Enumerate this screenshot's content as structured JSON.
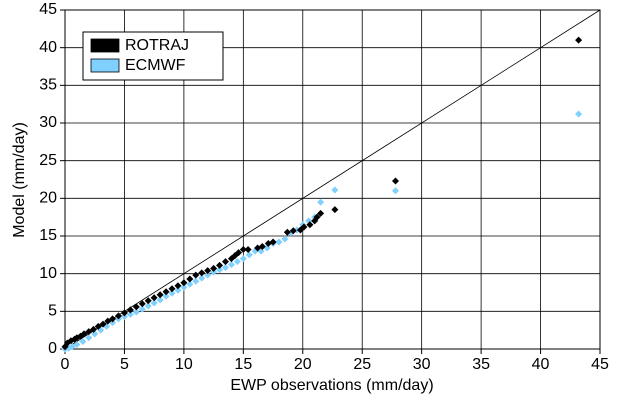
{
  "chart_data": {
    "type": "scatter",
    "xlabel": "EWP observations (mm/day)",
    "ylabel": "Model (mm/day)",
    "xlim": [
      0,
      45
    ],
    "ylim": [
      0,
      45
    ],
    "xticks": [
      0,
      5,
      10,
      15,
      20,
      25,
      30,
      35,
      40,
      45
    ],
    "yticks": [
      0,
      5,
      10,
      15,
      20,
      25,
      30,
      35,
      40,
      45
    ],
    "grid": true,
    "legend": "upper left",
    "series": [
      {
        "name": "ROTRAJ",
        "color": "#000000",
        "x": [
          0,
          0.2,
          0.5,
          0.8,
          1,
          1.3,
          1.6,
          2,
          2.4,
          2.8,
          3.2,
          3.6,
          4,
          4.5,
          5,
          5.5,
          6,
          6.5,
          7,
          7.5,
          8,
          8.5,
          9,
          9.5,
          10,
          10.5,
          11,
          11.5,
          12,
          12.5,
          13,
          13.5,
          14,
          14.3,
          14.6,
          15,
          15.4,
          16.2,
          16.6,
          17.1,
          17.5,
          18.7,
          19.2,
          19.8,
          20.1,
          20.6,
          21,
          21.2,
          21.5,
          22.7,
          27.8,
          43.2
        ],
        "values": [
          0.3,
          0.8,
          1.1,
          1.3,
          1.5,
          1.7,
          2.0,
          2.3,
          2.6,
          3.0,
          3.3,
          3.7,
          4.0,
          4.4,
          4.8,
          5.2,
          5.6,
          6.0,
          6.4,
          6.8,
          7.2,
          7.6,
          8.0,
          8.4,
          8.8,
          9.3,
          9.8,
          10.1,
          10.4,
          10.7,
          11.1,
          11.6,
          12.0,
          12.4,
          12.8,
          13.2,
          13.2,
          13.4,
          13.6,
          14.0,
          14.2,
          15.5,
          15.7,
          15.8,
          16.2,
          16.5,
          17.0,
          17.5,
          18.0,
          18.5,
          22.3,
          41
        ]
      },
      {
        "name": "ECMWF",
        "color": "#7fcfff",
        "x": [
          0,
          0.3,
          0.6,
          1,
          1.5,
          2,
          2.5,
          3,
          3.5,
          4,
          4.5,
          5,
          5.5,
          6,
          6.5,
          7,
          7.5,
          8,
          8.5,
          9,
          9.5,
          10,
          10.5,
          11,
          11.5,
          12,
          12.5,
          13,
          13.5,
          14,
          14.5,
          15,
          15.5,
          16,
          16.5,
          17,
          17.5,
          18,
          18.5,
          19,
          19.5,
          20,
          20.5,
          21,
          21.5,
          22.7,
          27.8,
          43.2
        ],
        "values": [
          0,
          0.1,
          0.3,
          0.6,
          1.0,
          1.5,
          2.0,
          2.5,
          3.0,
          3.5,
          4.0,
          4.3,
          4.6,
          4.9,
          5.3,
          5.7,
          6.1,
          6.5,
          7.0,
          7.4,
          7.8,
          8.2,
          8.6,
          9.0,
          9.4,
          9.8,
          10.2,
          10.5,
          10.8,
          11.2,
          11.6,
          12.0,
          12.5,
          13.0,
          13.0,
          13.4,
          14.0,
          14.2,
          14.6,
          15.4,
          15.8,
          16.5,
          17.0,
          17.5,
          19.5,
          21.1,
          21.0,
          31.2
        ]
      }
    ]
  }
}
